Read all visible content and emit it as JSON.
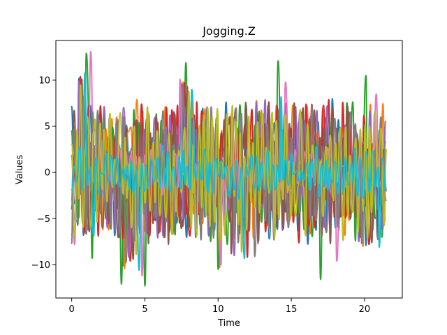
{
  "chart_data": {
    "type": "line",
    "title": "Jogging.Z",
    "xlabel": "Time",
    "ylabel": "Values",
    "xlim": [
      -1.08,
      22.58
    ],
    "ylim": [
      -13.6,
      14.3
    ],
    "xticks": [
      0,
      5,
      10,
      15,
      20
    ],
    "yticks": [
      -10,
      -5,
      0,
      5,
      10
    ],
    "x_range": [
      0,
      21.5
    ],
    "grid": false,
    "legend": "none",
    "series_colors": [
      "#1f77b4",
      "#ff7f0e",
      "#2ca02c",
      "#d62728",
      "#9467bd",
      "#8c564b",
      "#e377c2",
      "#7f7f7f",
      "#bcbd22",
      "#17becf"
    ],
    "series": [
      {
        "peaks": [
          [
            0.5,
            10.2
          ],
          [
            0.8,
            -6.8
          ],
          [
            3.5,
            -10.1
          ],
          [
            7.5,
            9.6
          ],
          [
            13.5,
            -7.2
          ],
          [
            17.8,
            8.0
          ],
          [
            20.1,
            -7.9
          ]
        ]
      },
      {
        "peaks": [
          [
            0.6,
            10.6
          ],
          [
            0.9,
            -6.6
          ],
          [
            3.6,
            -10.4
          ],
          [
            7.6,
            9.8
          ],
          [
            10.1,
            -10.3
          ],
          [
            14.0,
            7.3
          ],
          [
            19.9,
            -8.0
          ]
        ]
      },
      {
        "peaks": [
          [
            1.0,
            12.9
          ],
          [
            1.4,
            -9.3
          ],
          [
            3.4,
            -12.1
          ],
          [
            5.0,
            -12.3
          ],
          [
            7.8,
            11.9
          ],
          [
            10.0,
            -10.5
          ],
          [
            14.1,
            12.1
          ],
          [
            17.0,
            -11.6
          ],
          [
            20.1,
            10.5
          ]
        ]
      },
      {
        "peaks": [
          [
            0.6,
            10.4
          ],
          [
            0.9,
            -6.5
          ],
          [
            4.0,
            -9.6
          ],
          [
            7.7,
            9.7
          ],
          [
            12.0,
            -9.2
          ],
          [
            16.0,
            7.4
          ],
          [
            20.3,
            -7.8
          ]
        ]
      },
      {
        "peaks": [
          [
            0.5,
            9.9
          ],
          [
            1.1,
            -6.2
          ],
          [
            3.9,
            -9.2
          ],
          [
            7.5,
            9.1
          ],
          [
            11.1,
            -9.0
          ],
          [
            15.3,
            7.1
          ],
          [
            19.6,
            -7.5
          ]
        ]
      },
      {
        "peaks": [
          [
            0.7,
            10.1
          ],
          [
            1.2,
            -6.4
          ],
          [
            4.2,
            -9.4
          ],
          [
            7.9,
            9.3
          ],
          [
            10.9,
            -8.8
          ],
          [
            15.8,
            7.0
          ],
          [
            20.5,
            -7.6
          ]
        ]
      },
      {
        "peaks": [
          [
            1.3,
            13.1
          ],
          [
            0.2,
            -7.8
          ],
          [
            4.8,
            -11.2
          ],
          [
            7.4,
            10.1
          ],
          [
            10.2,
            -10.0
          ],
          [
            14.6,
            9.8
          ],
          [
            18.1,
            -9.6
          ],
          [
            20.8,
            8.5
          ]
        ]
      },
      {
        "peaks": [
          [
            0.8,
            10.3
          ],
          [
            1.0,
            -6.7
          ],
          [
            3.7,
            -9.8
          ],
          [
            7.6,
            9.5
          ],
          [
            12.5,
            -9.1
          ],
          [
            16.4,
            7.2
          ],
          [
            19.8,
            -7.7
          ]
        ]
      },
      {
        "peaks": [
          [
            0.6,
            9.5
          ],
          [
            1.3,
            -6.0
          ],
          [
            4.4,
            -8.9
          ],
          [
            8.0,
            8.8
          ],
          [
            11.6,
            -8.6
          ],
          [
            15.6,
            6.8
          ],
          [
            20.2,
            -7.2
          ]
        ]
      },
      {
        "peaks": [
          [
            0.9,
            10.8
          ],
          [
            1.5,
            -6.9
          ],
          [
            4.6,
            -10.6
          ],
          [
            8.2,
            9.0
          ],
          [
            11.8,
            -9.3
          ],
          [
            14.3,
            8.2
          ],
          [
            21.0,
            -8.1
          ]
        ]
      }
    ]
  }
}
